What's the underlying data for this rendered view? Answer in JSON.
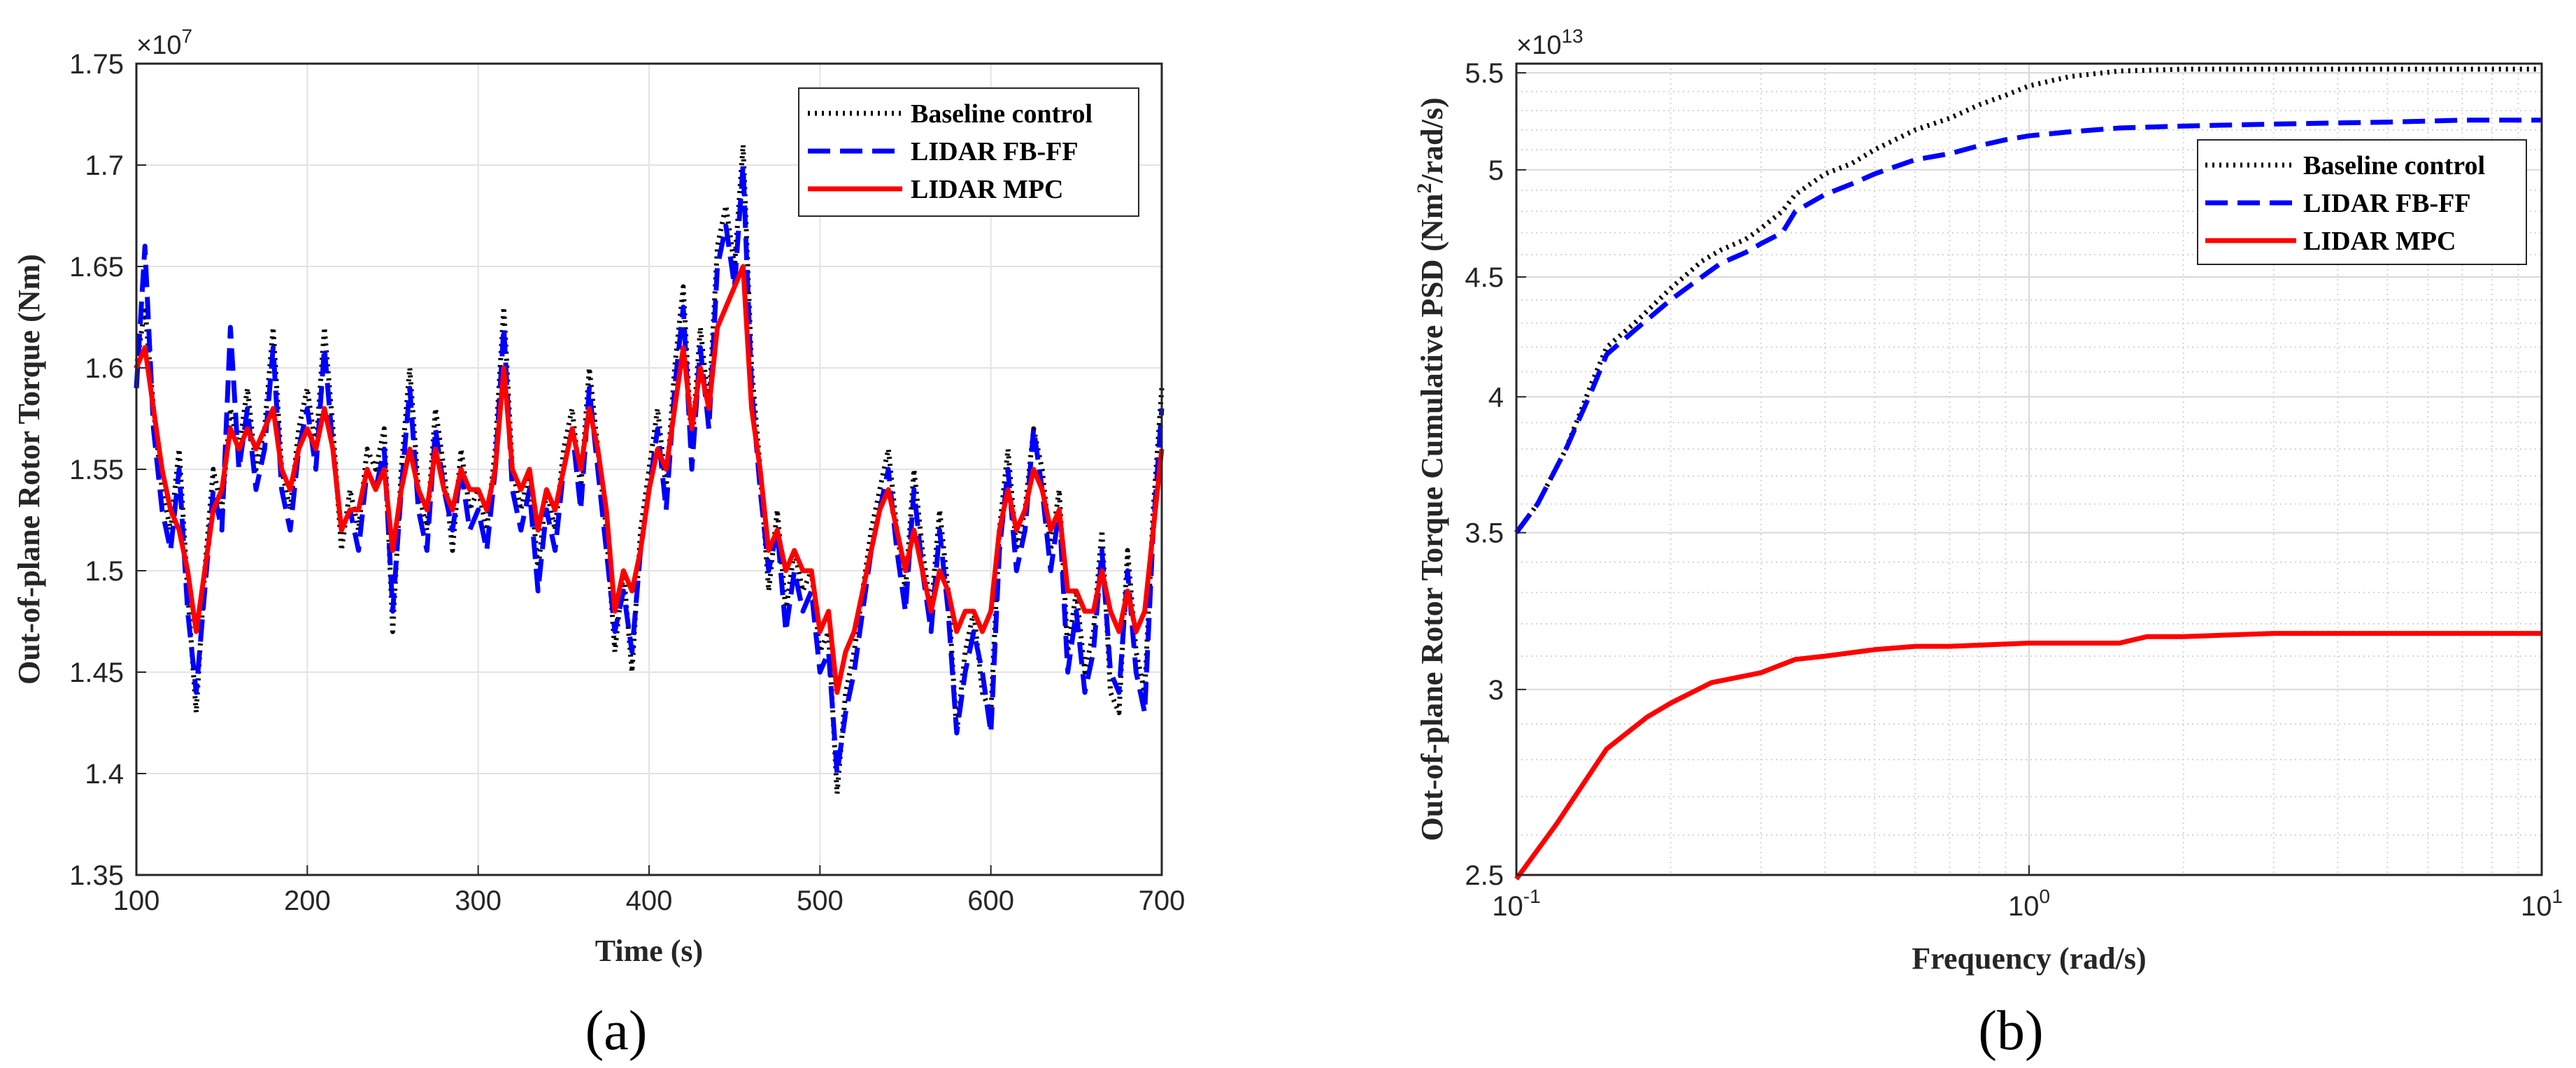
{
  "chart_data": [
    {
      "type": "line",
      "caption": "(a)",
      "xlabel": "Time (s)",
      "ylabel": "Out-of-plane Rotor Torque (Nm)",
      "y_multiplier": "×10",
      "y_multiplier_exp": "7",
      "xlim": [
        100,
        700
      ],
      "ylim": [
        1.35,
        1.75
      ],
      "xticks": [
        100,
        200,
        300,
        400,
        500,
        600,
        700
      ],
      "yticks": [
        1.35,
        1.4,
        1.45,
        1.5,
        1.55,
        1.6,
        1.65,
        1.7,
        1.75
      ],
      "grid": true,
      "legend_position": "top-right",
      "series": [
        {
          "name": "Baseline control",
          "color": "#000000",
          "style": "dotted",
          "x": [
            100,
            105,
            110,
            115,
            120,
            125,
            130,
            135,
            140,
            145,
            150,
            155,
            160,
            165,
            170,
            175,
            180,
            185,
            190,
            195,
            200,
            205,
            210,
            215,
            220,
            225,
            230,
            235,
            240,
            245,
            250,
            255,
            260,
            265,
            270,
            275,
            280,
            285,
            290,
            295,
            300,
            305,
            310,
            315,
            320,
            325,
            330,
            335,
            340,
            345,
            350,
            355,
            360,
            365,
            370,
            375,
            380,
            385,
            390,
            395,
            400,
            405,
            410,
            415,
            420,
            425,
            430,
            435,
            440,
            445,
            450,
            455,
            460,
            465,
            470,
            475,
            480,
            485,
            490,
            495,
            500,
            505,
            510,
            515,
            520,
            525,
            530,
            535,
            540,
            545,
            550,
            555,
            560,
            565,
            570,
            575,
            580,
            585,
            590,
            595,
            600,
            605,
            610,
            615,
            620,
            625,
            630,
            635,
            640,
            645,
            650,
            655,
            660,
            665,
            670,
            675,
            680,
            685,
            690,
            695,
            700
          ],
          "y": [
            1.6,
            1.63,
            1.58,
            1.54,
            1.52,
            1.56,
            1.49,
            1.43,
            1.5,
            1.55,
            1.53,
            1.58,
            1.56,
            1.59,
            1.55,
            1.57,
            1.62,
            1.55,
            1.53,
            1.57,
            1.59,
            1.56,
            1.62,
            1.57,
            1.51,
            1.54,
            1.52,
            1.56,
            1.55,
            1.57,
            1.47,
            1.55,
            1.6,
            1.54,
            1.52,
            1.58,
            1.55,
            1.51,
            1.56,
            1.53,
            1.54,
            1.52,
            1.56,
            1.63,
            1.55,
            1.53,
            1.55,
            1.5,
            1.54,
            1.52,
            1.56,
            1.58,
            1.54,
            1.6,
            1.56,
            1.52,
            1.46,
            1.5,
            1.45,
            1.52,
            1.55,
            1.58,
            1.54,
            1.6,
            1.64,
            1.56,
            1.62,
            1.58,
            1.66,
            1.68,
            1.65,
            1.71,
            1.6,
            1.55,
            1.49,
            1.53,
            1.48,
            1.51,
            1.49,
            1.5,
            1.46,
            1.47,
            1.39,
            1.44,
            1.46,
            1.49,
            1.52,
            1.54,
            1.56,
            1.52,
            1.49,
            1.55,
            1.51,
            1.48,
            1.53,
            1.49,
            1.42,
            1.46,
            1.48,
            1.44,
            1.43,
            1.52,
            1.56,
            1.51,
            1.53,
            1.57,
            1.55,
            1.51,
            1.54,
            1.46,
            1.49,
            1.45,
            1.47,
            1.52,
            1.44,
            1.43,
            1.51,
            1.46,
            1.44,
            1.53,
            1.59
          ]
        },
        {
          "name": "LIDAR FB-FF",
          "color": "#0000ff",
          "style": "dashed",
          "x": [
            100,
            105,
            110,
            115,
            120,
            125,
            130,
            135,
            140,
            145,
            150,
            155,
            160,
            165,
            170,
            175,
            180,
            185,
            190,
            195,
            200,
            205,
            210,
            215,
            220,
            225,
            230,
            235,
            240,
            245,
            250,
            255,
            260,
            265,
            270,
            275,
            280,
            285,
            290,
            295,
            300,
            305,
            310,
            315,
            320,
            325,
            330,
            335,
            340,
            345,
            350,
            355,
            360,
            365,
            370,
            375,
            380,
            385,
            390,
            395,
            400,
            405,
            410,
            415,
            420,
            425,
            430,
            435,
            440,
            445,
            450,
            455,
            460,
            465,
            470,
            475,
            480,
            485,
            490,
            495,
            500,
            505,
            510,
            515,
            520,
            525,
            530,
            535,
            540,
            545,
            550,
            555,
            560,
            565,
            570,
            575,
            580,
            585,
            590,
            595,
            600,
            605,
            610,
            615,
            620,
            625,
            630,
            635,
            640,
            645,
            650,
            655,
            660,
            665,
            670,
            675,
            680,
            685,
            690,
            695,
            700
          ],
          "y": [
            1.59,
            1.66,
            1.57,
            1.53,
            1.51,
            1.55,
            1.48,
            1.44,
            1.49,
            1.54,
            1.52,
            1.62,
            1.55,
            1.58,
            1.54,
            1.56,
            1.61,
            1.54,
            1.52,
            1.56,
            1.58,
            1.55,
            1.61,
            1.56,
            1.52,
            1.53,
            1.51,
            1.55,
            1.54,
            1.56,
            1.48,
            1.54,
            1.59,
            1.53,
            1.51,
            1.57,
            1.54,
            1.52,
            1.55,
            1.52,
            1.53,
            1.51,
            1.55,
            1.62,
            1.54,
            1.52,
            1.54,
            1.49,
            1.53,
            1.51,
            1.55,
            1.57,
            1.53,
            1.59,
            1.55,
            1.51,
            1.47,
            1.49,
            1.46,
            1.51,
            1.54,
            1.57,
            1.53,
            1.59,
            1.63,
            1.55,
            1.61,
            1.57,
            1.65,
            1.67,
            1.64,
            1.7,
            1.59,
            1.54,
            1.5,
            1.52,
            1.47,
            1.5,
            1.48,
            1.49,
            1.45,
            1.46,
            1.4,
            1.43,
            1.45,
            1.48,
            1.51,
            1.53,
            1.55,
            1.51,
            1.48,
            1.54,
            1.5,
            1.47,
            1.52,
            1.48,
            1.42,
            1.45,
            1.47,
            1.45,
            1.42,
            1.51,
            1.55,
            1.5,
            1.52,
            1.57,
            1.54,
            1.5,
            1.53,
            1.45,
            1.48,
            1.44,
            1.46,
            1.51,
            1.45,
            1.44,
            1.5,
            1.45,
            1.43,
            1.52,
            1.58
          ]
        },
        {
          "name": "LIDAR MPC",
          "color": "#ff0000",
          "style": "solid",
          "x": [
            100,
            105,
            110,
            115,
            120,
            125,
            130,
            135,
            140,
            145,
            150,
            155,
            160,
            165,
            170,
            175,
            180,
            185,
            190,
            195,
            200,
            205,
            210,
            215,
            220,
            225,
            230,
            235,
            240,
            245,
            250,
            255,
            260,
            265,
            270,
            275,
            280,
            285,
            290,
            295,
            300,
            305,
            310,
            315,
            320,
            325,
            330,
            335,
            340,
            345,
            350,
            355,
            360,
            365,
            370,
            375,
            380,
            385,
            390,
            395,
            400,
            405,
            410,
            415,
            420,
            425,
            430,
            435,
            440,
            445,
            450,
            455,
            460,
            465,
            470,
            475,
            480,
            485,
            490,
            495,
            500,
            505,
            510,
            515,
            520,
            525,
            530,
            535,
            540,
            545,
            550,
            555,
            560,
            565,
            570,
            575,
            580,
            585,
            590,
            595,
            600,
            605,
            610,
            615,
            620,
            625,
            630,
            635,
            640,
            645,
            650,
            655,
            660,
            665,
            670,
            675,
            680,
            685,
            690,
            695,
            700
          ],
          "y": [
            1.6,
            1.61,
            1.58,
            1.55,
            1.53,
            1.52,
            1.5,
            1.47,
            1.5,
            1.53,
            1.54,
            1.57,
            1.56,
            1.57,
            1.56,
            1.57,
            1.58,
            1.55,
            1.54,
            1.56,
            1.57,
            1.56,
            1.58,
            1.56,
            1.52,
            1.53,
            1.53,
            1.55,
            1.54,
            1.55,
            1.51,
            1.54,
            1.56,
            1.54,
            1.53,
            1.56,
            1.54,
            1.53,
            1.55,
            1.54,
            1.54,
            1.53,
            1.55,
            1.6,
            1.55,
            1.54,
            1.55,
            1.52,
            1.54,
            1.53,
            1.55,
            1.57,
            1.55,
            1.58,
            1.56,
            1.53,
            1.48,
            1.5,
            1.49,
            1.51,
            1.54,
            1.56,
            1.55,
            1.58,
            1.61,
            1.57,
            1.6,
            1.58,
            1.62,
            1.63,
            1.64,
            1.65,
            1.58,
            1.55,
            1.51,
            1.52,
            1.5,
            1.51,
            1.5,
            1.5,
            1.47,
            1.48,
            1.44,
            1.46,
            1.47,
            1.49,
            1.51,
            1.53,
            1.54,
            1.52,
            1.5,
            1.52,
            1.5,
            1.48,
            1.5,
            1.49,
            1.47,
            1.48,
            1.48,
            1.47,
            1.48,
            1.52,
            1.54,
            1.52,
            1.53,
            1.55,
            1.54,
            1.52,
            1.53,
            1.49,
            1.49,
            1.48,
            1.48,
            1.5,
            1.48,
            1.47,
            1.49,
            1.47,
            1.48,
            1.52,
            1.56
          ]
        }
      ]
    },
    {
      "type": "line",
      "caption": "(b)",
      "xlabel": "Frequency (rad/s)",
      "ylabel": "Out-of-plane Rotor Torque Cumulative PSD (Nm²/rad/s)",
      "ylabel_pre": "Out-of-plane Rotor Torque Cumulative PSD (Nm",
      "ylabel_sup": "2",
      "ylabel_post": "/rad/s)",
      "y_multiplier": "×10",
      "y_multiplier_exp": "13",
      "xscale": "log",
      "yscale": "log",
      "xlim": [
        0.1,
        10
      ],
      "ylim": [
        2.5,
        5.55
      ],
      "xticks": [
        {
          "value": 0.1,
          "base": "10",
          "exp": "-1"
        },
        {
          "value": 1,
          "base": "10",
          "exp": "0"
        },
        {
          "value": 10,
          "base": "10",
          "exp": "1"
        }
      ],
      "yticks": [
        2.5,
        3,
        3.5,
        4,
        4.5,
        5,
        5.5
      ],
      "grid": true,
      "minor_grid": true,
      "legend_position": "top-right",
      "series": [
        {
          "name": "Baseline control",
          "color": "#000000",
          "style": "dotted",
          "x": [
            0.1,
            0.11,
            0.125,
            0.14,
            0.15,
            0.17,
            0.2,
            0.23,
            0.25,
            0.28,
            0.3,
            0.33,
            0.35,
            0.4,
            0.45,
            0.5,
            0.6,
            0.7,
            0.8,
            0.9,
            1.0,
            1.2,
            1.5,
            2,
            3,
            5,
            7,
            10
          ],
          "y": [
            3.5,
            3.6,
            3.8,
            4.05,
            4.2,
            4.3,
            4.45,
            4.57,
            4.62,
            4.67,
            4.72,
            4.8,
            4.88,
            4.98,
            5.03,
            5.1,
            5.2,
            5.26,
            5.33,
            5.38,
            5.43,
            5.48,
            5.51,
            5.52,
            5.52,
            5.52,
            5.52,
            5.52
          ]
        },
        {
          "name": "LIDAR FB-FF",
          "color": "#0000ff",
          "style": "dashed",
          "x": [
            0.1,
            0.11,
            0.125,
            0.14,
            0.15,
            0.17,
            0.2,
            0.23,
            0.25,
            0.28,
            0.3,
            0.33,
            0.35,
            0.4,
            0.45,
            0.5,
            0.6,
            0.7,
            0.8,
            0.9,
            1.0,
            1.2,
            1.5,
            2,
            3,
            5,
            7,
            10
          ],
          "y": [
            3.5,
            3.6,
            3.8,
            4.02,
            4.17,
            4.27,
            4.4,
            4.5,
            4.56,
            4.61,
            4.65,
            4.7,
            4.8,
            4.88,
            4.93,
            4.98,
            5.05,
            5.08,
            5.12,
            5.15,
            5.17,
            5.19,
            5.21,
            5.22,
            5.23,
            5.24,
            5.25,
            5.25
          ]
        },
        {
          "name": "LIDAR MPC",
          "color": "#ff0000",
          "style": "solid",
          "x": [
            0.1,
            0.12,
            0.15,
            0.18,
            0.2,
            0.24,
            0.3,
            0.35,
            0.4,
            0.5,
            0.6,
            0.7,
            1.0,
            1.5,
            1.7,
            2,
            3,
            5,
            10
          ],
          "y": [
            2.49,
            2.63,
            2.83,
            2.92,
            2.96,
            3.02,
            3.05,
            3.09,
            3.1,
            3.12,
            3.13,
            3.13,
            3.14,
            3.14,
            3.16,
            3.16,
            3.17,
            3.17,
            3.17
          ]
        }
      ]
    }
  ]
}
